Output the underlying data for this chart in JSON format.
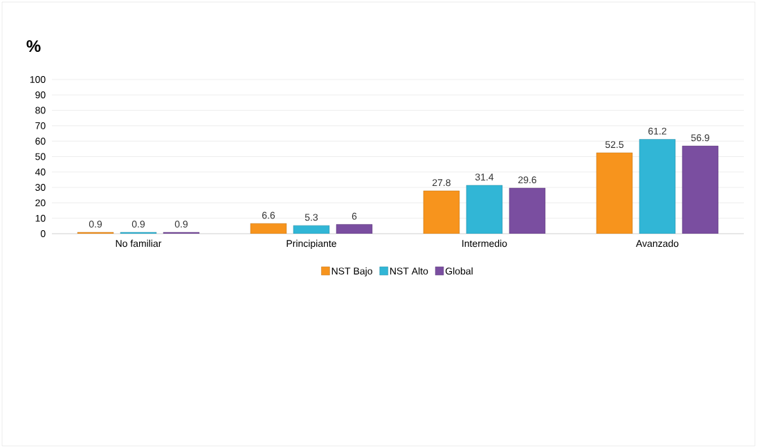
{
  "chart_data": {
    "type": "bar",
    "ylabel": "%",
    "categories": [
      "No familiar",
      "Principiante",
      "Intermedio",
      "Avanzado"
    ],
    "series": [
      {
        "name": "NST Bajo",
        "color": "#f7941d",
        "values": [
          0.9,
          6.6,
          27.8,
          52.5
        ]
      },
      {
        "name": "NST Alto",
        "color": "#31b6d6",
        "values": [
          0.9,
          5.3,
          31.4,
          61.2
        ]
      },
      {
        "name": "Global",
        "color": "#7a4ea0",
        "values": [
          0.9,
          6,
          29.6,
          56.9
        ]
      }
    ],
    "ylim": [
      0,
      100
    ],
    "yticks": [
      0,
      10,
      20,
      30,
      40,
      50,
      60,
      70,
      80,
      90,
      100
    ],
    "grid": "y",
    "legend": "bottom",
    "data_labels": true
  }
}
